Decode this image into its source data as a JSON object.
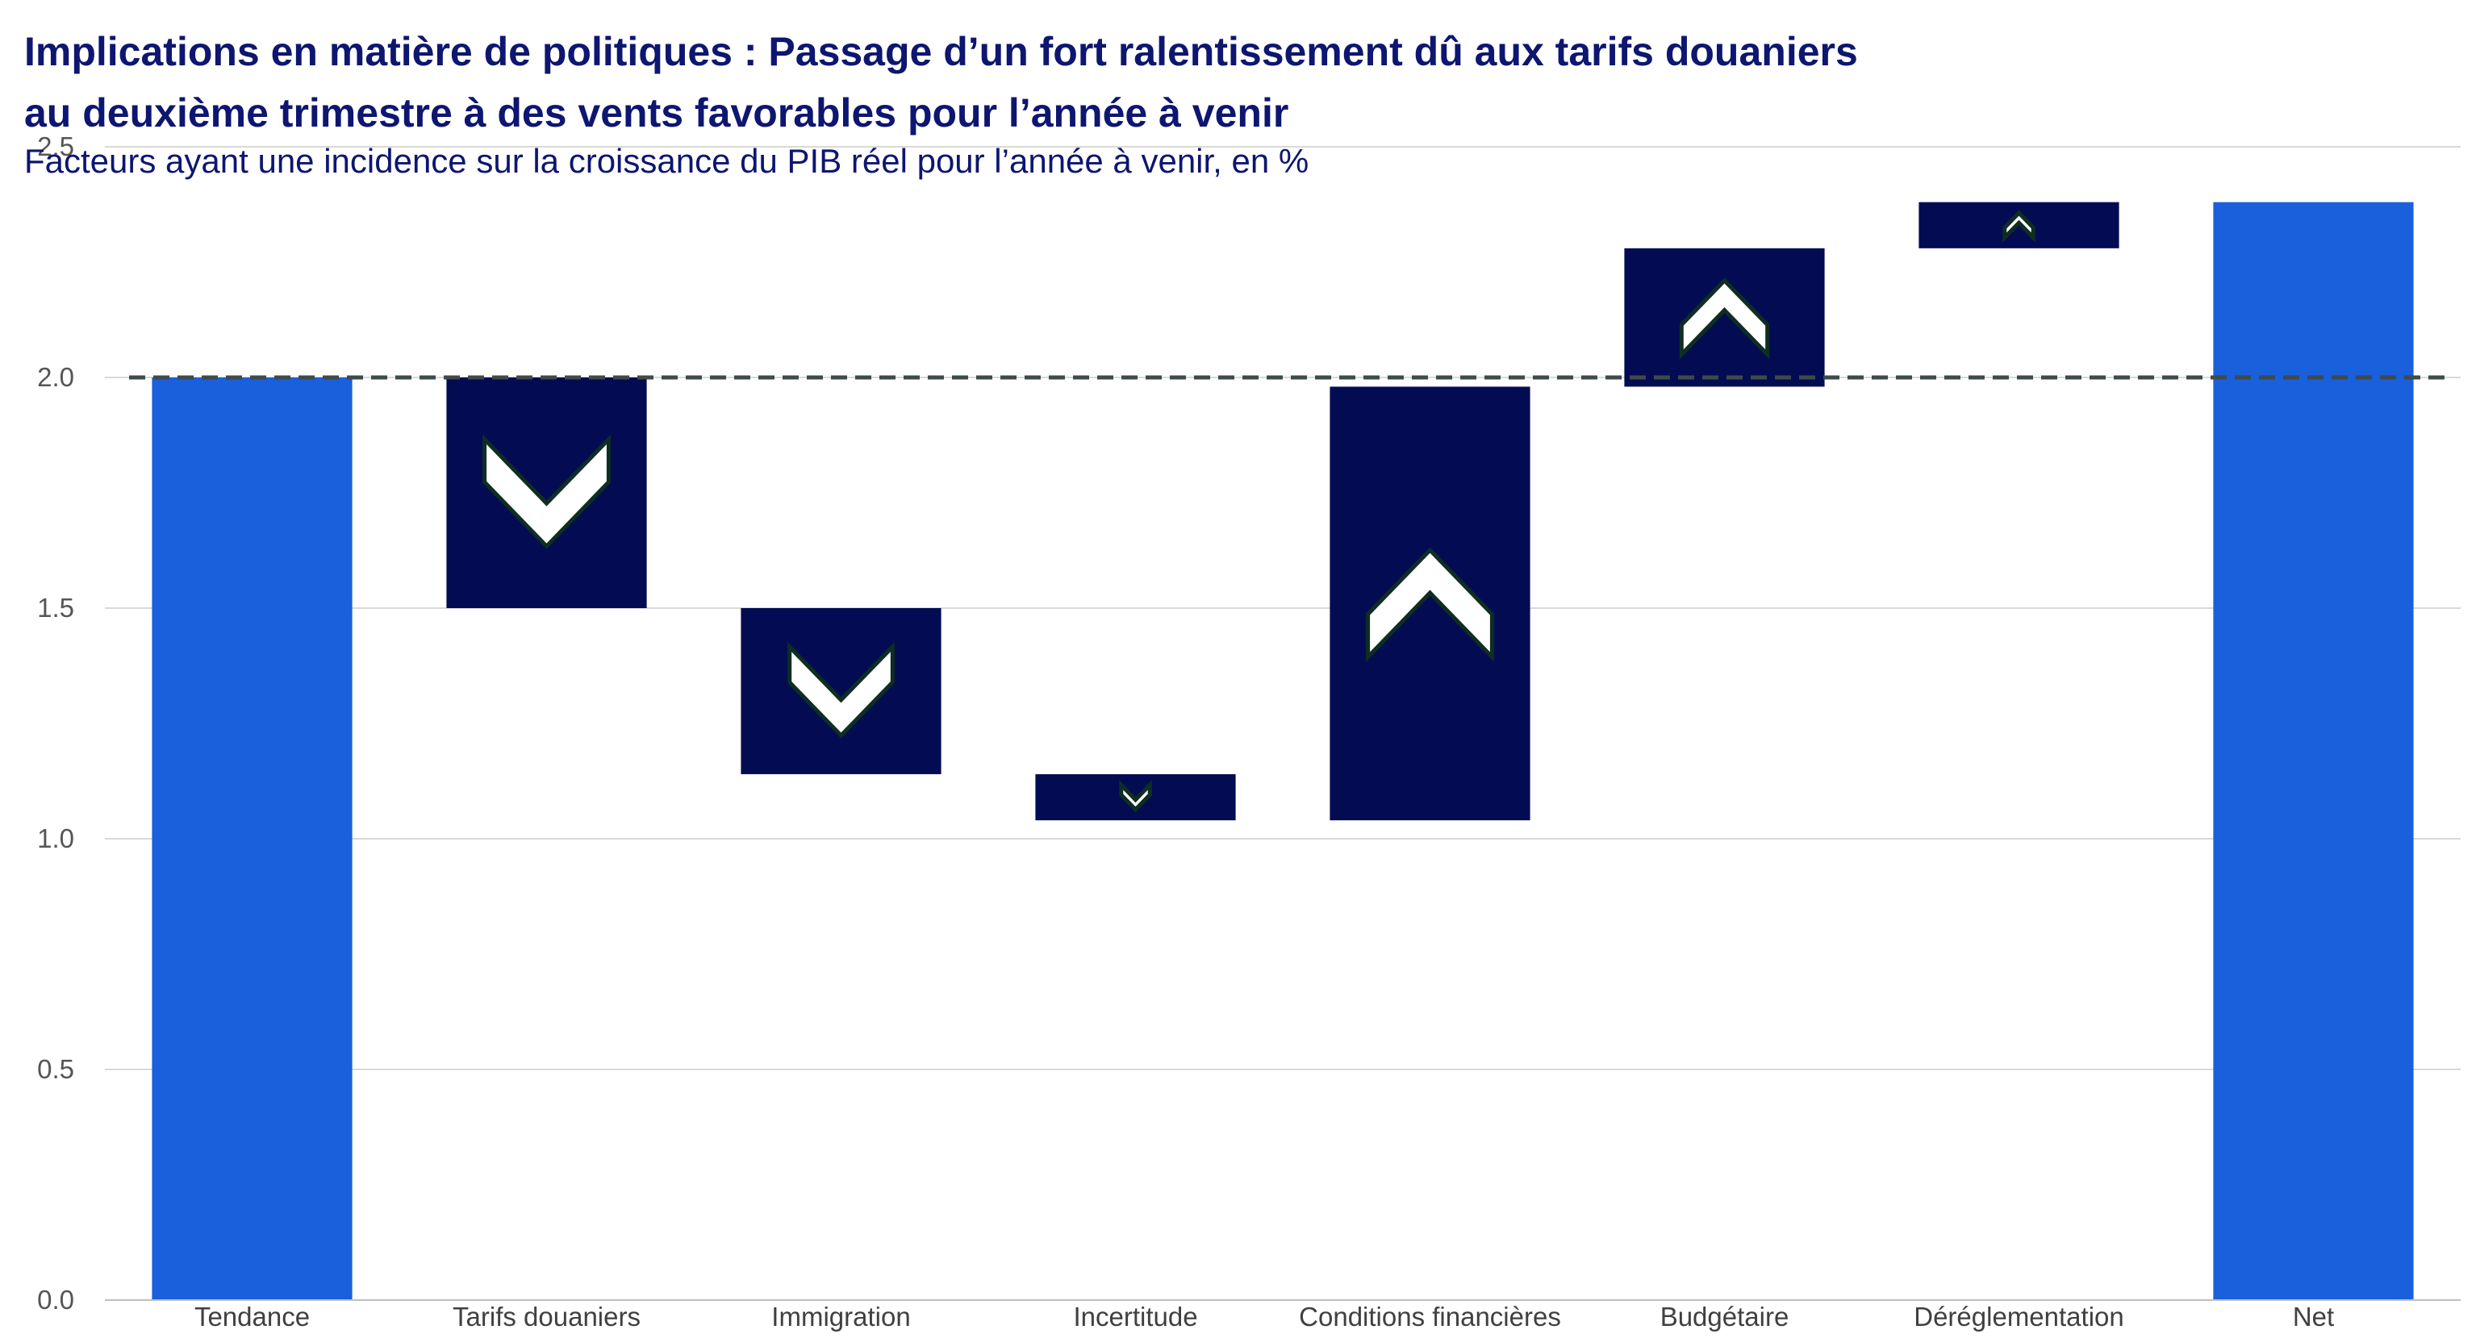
{
  "title_line1": "Implications en matière de politiques : Passage d’un fort ralentissement dû aux tarifs douaniers",
  "title_line2": "au deuxième trimestre à des vents favorables pour l’année à venir",
  "subtitle": "Facteurs ayant une incidence sur la croissance du PIB réel pour l’année à venir, en %",
  "colors": {
    "title": "#0d1670",
    "total_bar": "#1a5fdb",
    "change_bar": "#030c52",
    "arrow_fill": "#ffffff",
    "arrow_stroke": "#0f2e22",
    "reference_line": "#3f4a4a",
    "grid": "#d9d9d9"
  },
  "chart_data": {
    "type": "bar",
    "subtype": "waterfall",
    "categories": [
      "Tendance",
      "Tarifs douaniers",
      "Immigration",
      "Incertitude",
      "Conditions financières",
      "Budgétaire",
      "Déréglementation",
      "Net"
    ],
    "bars": [
      {
        "category": "Tendance",
        "kind": "total",
        "start": 0.0,
        "end": 2.0
      },
      {
        "category": "Tarifs douaniers",
        "kind": "change",
        "direction": "down",
        "start": 2.0,
        "end": 1.5
      },
      {
        "category": "Immigration",
        "kind": "change",
        "direction": "down",
        "start": 1.5,
        "end": 1.14
      },
      {
        "category": "Incertitude",
        "kind": "change",
        "direction": "down",
        "start": 1.14,
        "end": 1.04
      },
      {
        "category": "Conditions financières",
        "kind": "change",
        "direction": "up",
        "start": 1.04,
        "end": 1.98
      },
      {
        "category": "Budgétaire",
        "kind": "change",
        "direction": "up",
        "start": 1.98,
        "end": 2.28
      },
      {
        "category": "Déréglementation",
        "kind": "change",
        "direction": "up",
        "start": 2.28,
        "end": 2.38
      },
      {
        "category": "Net",
        "kind": "total",
        "start": 0.0,
        "end": 2.38
      }
    ],
    "reference_line": {
      "value": 2.0,
      "style": "dashed"
    },
    "y_ticks": [
      "0.0",
      "0.5",
      "1.0",
      "1.5",
      "2.0",
      "2.5"
    ],
    "ylim": [
      0,
      2.5
    ],
    "grid": true,
    "legend": "none"
  }
}
